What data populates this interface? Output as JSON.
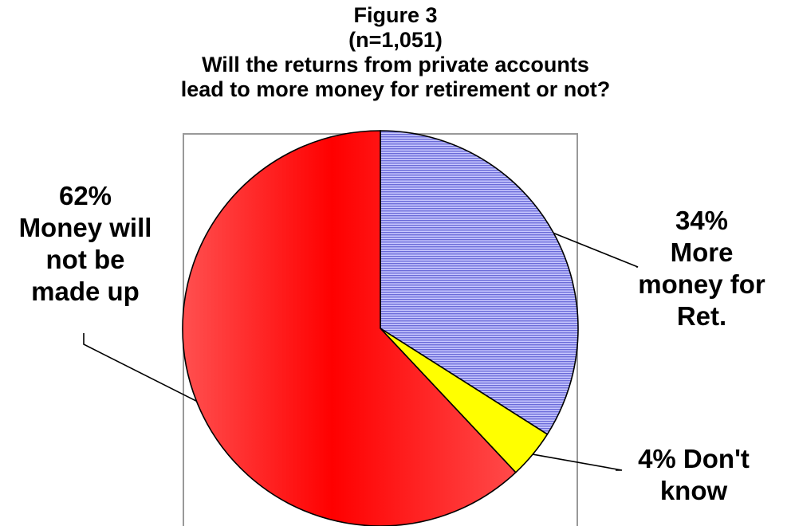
{
  "chart_data": {
    "type": "pie",
    "title_lines": [
      "Figure 3",
      "(n=1,051)",
      "Will the returns from private accounts",
      "lead to more money for retirement or not?"
    ],
    "slices": [
      {
        "key": "more-money",
        "value": 34,
        "label_lines": [
          "34%",
          "More",
          "money for",
          "Ret."
        ],
        "color": "#9999ff",
        "pattern": "horizontal-lines"
      },
      {
        "key": "dont-know",
        "value": 4,
        "label_lines": [
          "4% Don't",
          "know"
        ],
        "color": "#ffff00",
        "pattern": "solid"
      },
      {
        "key": "not-made-up",
        "value": 62,
        "label_lines": [
          "62%",
          "Money will",
          "not be",
          "made up"
        ],
        "color": "#ff0000",
        "pattern": "gradient"
      }
    ],
    "start_angle": "12 o'clock",
    "direction": "clockwise",
    "plot_area_border_color": "#999999",
    "legend": "none"
  }
}
